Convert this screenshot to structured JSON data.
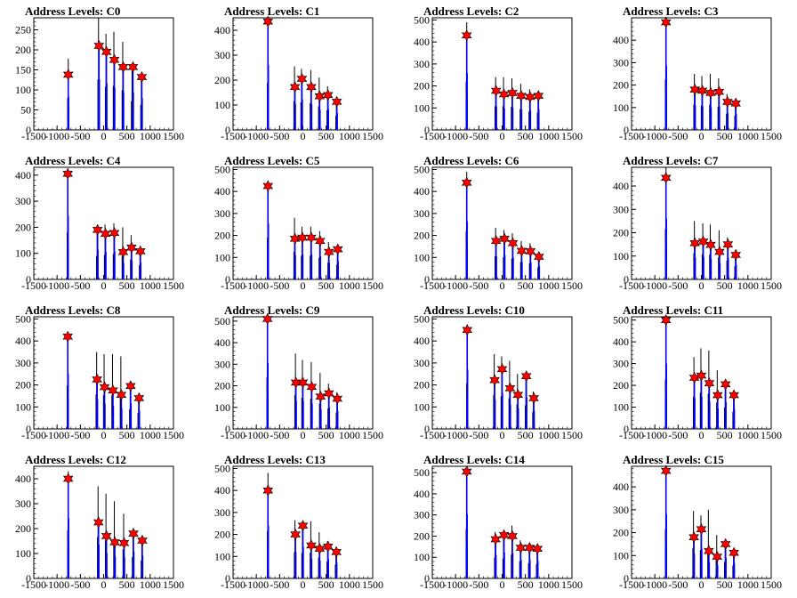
{
  "chart_data": [
    {
      "type": "histogram",
      "title": "Address Levels: C0",
      "xlim": [
        -1500,
        1500
      ],
      "ylim": [
        0,
        280
      ],
      "yticks": [
        0,
        50,
        100,
        150,
        200,
        250
      ],
      "peaks": [
        [
          -760,
          138
        ],
        [
          -100,
          210
        ],
        [
          60,
          195
        ],
        [
          230,
          175
        ],
        [
          420,
          157
        ],
        [
          630,
          157
        ],
        [
          820,
          132
        ]
      ],
      "black_max": [
        -760,
        178,
        -110,
        280,
        50,
        240,
        220,
        245,
        410,
        220,
        610,
        160,
        810,
        140
      ]
    },
    {
      "type": "histogram",
      "title": "Address Levels: C1",
      "xlim": [
        -1500,
        1500
      ],
      "ylim": [
        0,
        450
      ],
      "yticks": [
        0,
        100,
        200,
        300,
        400
      ],
      "peaks": [
        [
          -750,
          435
        ],
        [
          -170,
          172
        ],
        [
          -20,
          205
        ],
        [
          180,
          172
        ],
        [
          360,
          135
        ],
        [
          540,
          140
        ],
        [
          730,
          113
        ]
      ],
      "black_max": [
        -750,
        420,
        -180,
        255,
        -30,
        245,
        170,
        240,
        350,
        210,
        530,
        175,
        720,
        125
      ]
    },
    {
      "type": "histogram",
      "title": "Address Levels: C2",
      "xlim": [
        -1500,
        1500
      ],
      "ylim": [
        0,
        510
      ],
      "yticks": [
        0,
        100,
        200,
        300,
        400,
        500
      ],
      "peaks": [
        [
          -760,
          430
        ],
        [
          -130,
          178
        ],
        [
          40,
          162
        ],
        [
          220,
          168
        ],
        [
          410,
          155
        ],
        [
          600,
          150
        ],
        [
          780,
          155
        ]
      ],
      "black_max": [
        -760,
        490,
        -140,
        240,
        30,
        240,
        210,
        235,
        400,
        210,
        590,
        185,
        770,
        175
      ]
    },
    {
      "type": "histogram",
      "title": "Address Levels: C3",
      "xlim": [
        -1500,
        1500
      ],
      "ylim": [
        0,
        500
      ],
      "yticks": [
        0,
        100,
        200,
        300,
        400
      ],
      "peaks": [
        [
          -760,
          480
        ],
        [
          -140,
          180
        ],
        [
          20,
          175
        ],
        [
          200,
          165
        ],
        [
          380,
          170
        ],
        [
          560,
          125
        ],
        [
          740,
          118
        ]
      ],
      "black_max": [
        -760,
        500,
        -150,
        250,
        10,
        240,
        190,
        250,
        370,
        230,
        550,
        160,
        730,
        140
      ]
    },
    {
      "type": "histogram",
      "title": "Address Levels: C4",
      "xlim": [
        -1500,
        1500
      ],
      "ylim": [
        0,
        430
      ],
      "yticks": [
        0,
        100,
        200,
        300,
        400
      ],
      "peaks": [
        [
          -770,
          405
        ],
        [
          -130,
          190
        ],
        [
          40,
          175
        ],
        [
          230,
          178
        ],
        [
          420,
          105
        ],
        [
          600,
          122
        ],
        [
          790,
          108
        ]
      ],
      "black_max": [
        -770,
        400,
        -140,
        200,
        30,
        210,
        220,
        215,
        410,
        200,
        590,
        170,
        780,
        120
      ]
    },
    {
      "type": "histogram",
      "title": "Address Levels: C5",
      "xlim": [
        -1500,
        1500
      ],
      "ylim": [
        0,
        510
      ],
      "yticks": [
        0,
        100,
        200,
        300,
        400,
        500
      ],
      "peaks": [
        [
          -750,
          425
        ],
        [
          -170,
          185
        ],
        [
          -10,
          190
        ],
        [
          180,
          190
        ],
        [
          370,
          175
        ],
        [
          560,
          125
        ],
        [
          750,
          137
        ]
      ],
      "black_max": [
        -750,
        420,
        -180,
        280,
        -20,
        240,
        170,
        240,
        360,
        220,
        550,
        170,
        740,
        150
      ]
    },
    {
      "type": "histogram",
      "title": "Address Levels: C6",
      "xlim": [
        -1500,
        1500
      ],
      "ylim": [
        0,
        510
      ],
      "yticks": [
        0,
        100,
        200,
        300,
        400,
        500
      ],
      "peaks": [
        [
          -760,
          440
        ],
        [
          -130,
          175
        ],
        [
          50,
          185
        ],
        [
          230,
          165
        ],
        [
          420,
          130
        ],
        [
          610,
          128
        ],
        [
          790,
          103
        ]
      ],
      "black_max": [
        -760,
        490,
        -140,
        235,
        40,
        225,
        220,
        210,
        410,
        175,
        600,
        165,
        780,
        120
      ]
    },
    {
      "type": "histogram",
      "title": "Address Levels: C7",
      "xlim": [
        -1500,
        1500
      ],
      "ylim": [
        0,
        480
      ],
      "yticks": [
        0,
        100,
        200,
        300,
        400
      ],
      "peaks": [
        [
          -760,
          435
        ],
        [
          -140,
          155
        ],
        [
          40,
          162
        ],
        [
          200,
          148
        ],
        [
          390,
          118
        ],
        [
          570,
          150
        ],
        [
          740,
          105
        ]
      ],
      "black_max": [
        -760,
        480,
        -150,
        250,
        30,
        240,
        190,
        235,
        380,
        210,
        560,
        180,
        730,
        125
      ]
    },
    {
      "type": "histogram",
      "title": "Address Levels: C8",
      "xlim": [
        -1500,
        1500
      ],
      "ylim": [
        0,
        510
      ],
      "yticks": [
        0,
        100,
        200,
        300,
        400,
        500
      ],
      "peaks": [
        [
          -770,
          420
        ],
        [
          -140,
          225
        ],
        [
          20,
          190
        ],
        [
          200,
          175
        ],
        [
          380,
          155
        ],
        [
          580,
          195
        ],
        [
          760,
          140
        ]
      ],
      "black_max": [
        -770,
        440,
        -150,
        350,
        10,
        340,
        190,
        340,
        370,
        330,
        570,
        200,
        750,
        160
      ]
    },
    {
      "type": "histogram",
      "title": "Address Levels: C9",
      "xlim": [
        -1500,
        1500
      ],
      "ylim": [
        0,
        520
      ],
      "yticks": [
        0,
        100,
        200,
        300,
        400,
        500
      ],
      "peaks": [
        [
          -760,
          510
        ],
        [
          -150,
          215
        ],
        [
          0,
          215
        ],
        [
          190,
          195
        ],
        [
          380,
          150
        ],
        [
          560,
          165
        ],
        [
          740,
          140
        ]
      ],
      "black_max": [
        -760,
        530,
        -160,
        350,
        -10,
        320,
        180,
        310,
        370,
        260,
        550,
        210,
        730,
        170
      ]
    },
    {
      "type": "histogram",
      "title": "Address Levels: C10",
      "xlim": [
        -1500,
        1500
      ],
      "ylim": [
        0,
        510
      ],
      "yticks": [
        0,
        100,
        200,
        300,
        400,
        500
      ],
      "peaks": [
        [
          -750,
          450
        ],
        [
          -160,
          222
        ],
        [
          0,
          272
        ],
        [
          170,
          185
        ],
        [
          340,
          155
        ],
        [
          520,
          240
        ],
        [
          680,
          140
        ]
      ],
      "black_max": [
        -750,
        460,
        -170,
        340,
        -10,
        330,
        160,
        310,
        330,
        250,
        510,
        240,
        670,
        170
      ]
    },
    {
      "type": "histogram",
      "title": "Address Levels: C11",
      "xlim": [
        -1500,
        1500
      ],
      "ylim": [
        0,
        515
      ],
      "yticks": [
        0,
        100,
        200,
        300,
        400,
        500
      ],
      "peaks": [
        [
          -760,
          500
        ],
        [
          -150,
          235
        ],
        [
          0,
          245
        ],
        [
          170,
          210
        ],
        [
          350,
          155
        ],
        [
          520,
          205
        ],
        [
          700,
          155
        ]
      ],
      "black_max": [
        -760,
        505,
        -160,
        330,
        -10,
        370,
        160,
        360,
        340,
        270,
        510,
        220,
        690,
        175
      ]
    },
    {
      "type": "histogram",
      "title": "Address Levels: C12",
      "xlim": [
        -1500,
        1500
      ],
      "ylim": [
        0,
        450
      ],
      "yticks": [
        0,
        100,
        200,
        300,
        400
      ],
      "peaks": [
        [
          -760,
          400
        ],
        [
          -110,
          225
        ],
        [
          60,
          170
        ],
        [
          240,
          145
        ],
        [
          440,
          142
        ],
        [
          640,
          180
        ],
        [
          830,
          152
        ]
      ],
      "black_max": [
        -760,
        430,
        -120,
        370,
        50,
        340,
        230,
        310,
        430,
        260,
        630,
        190,
        820,
        160
      ]
    },
    {
      "type": "histogram",
      "title": "Address Levels: C13",
      "xlim": [
        -1500,
        1500
      ],
      "ylim": [
        0,
        510
      ],
      "yticks": [
        0,
        100,
        200,
        300,
        400,
        500
      ],
      "peaks": [
        [
          -750,
          400
        ],
        [
          -160,
          200
        ],
        [
          0,
          240
        ],
        [
          180,
          150
        ],
        [
          360,
          135
        ],
        [
          540,
          145
        ],
        [
          720,
          120
        ]
      ],
      "black_max": [
        -750,
        480,
        -170,
        265,
        -10,
        255,
        170,
        260,
        350,
        210,
        530,
        170,
        710,
        140
      ]
    },
    {
      "type": "histogram",
      "title": "Address Levels: C14",
      "xlim": [
        -1500,
        1500
      ],
      "ylim": [
        0,
        530
      ],
      "yticks": [
        0,
        100,
        200,
        300,
        400,
        500
      ],
      "peaks": [
        [
          -760,
          505
        ],
        [
          -140,
          185
        ],
        [
          40,
          205
        ],
        [
          220,
          200
        ],
        [
          400,
          145
        ],
        [
          590,
          145
        ],
        [
          760,
          140
        ]
      ],
      "black_max": [
        -760,
        520,
        -150,
        220,
        30,
        210,
        210,
        250,
        390,
        180,
        580,
        160,
        750,
        150
      ]
    },
    {
      "type": "histogram",
      "title": "Address Levels: C15",
      "xlim": [
        -1500,
        1500
      ],
      "ylim": [
        0,
        490
      ],
      "yticks": [
        0,
        100,
        200,
        300,
        400
      ],
      "peaks": [
        [
          -760,
          470
        ],
        [
          -160,
          180
        ],
        [
          0,
          215
        ],
        [
          160,
          120
        ],
        [
          340,
          95
        ],
        [
          520,
          150
        ],
        [
          700,
          112
        ]
      ],
      "black_max": [
        -760,
        480,
        -170,
        295,
        -10,
        275,
        150,
        300,
        330,
        190,
        510,
        160,
        690,
        125
      ]
    }
  ],
  "xticks": [
    -1500,
    -1000,
    -500,
    0,
    500,
    1000,
    1500
  ],
  "colors": {
    "blue": "#0000ff",
    "black": "#000000",
    "marker": "#ff0000"
  }
}
